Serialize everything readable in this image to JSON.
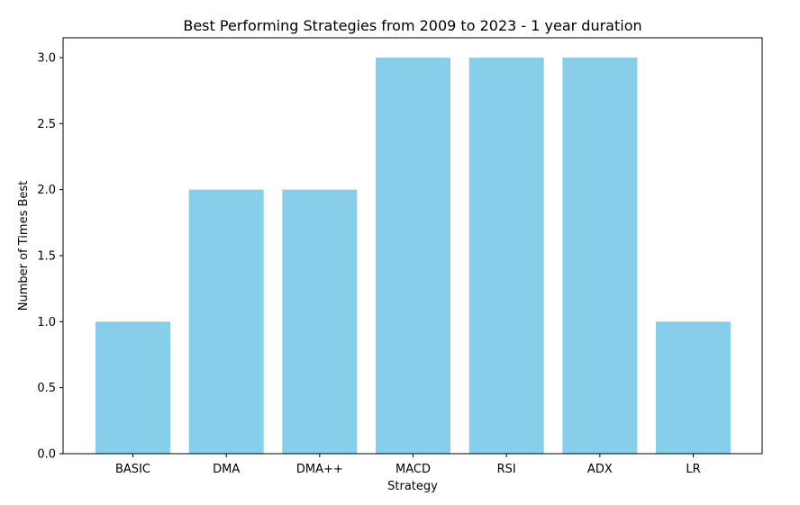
{
  "chart_data": {
    "type": "bar",
    "title": "Best Performing Strategies from 2009 to 2023 - 1 year duration",
    "xlabel": "Strategy",
    "ylabel": "Number of Times Best",
    "categories": [
      "BASIC",
      "DMA",
      "DMA++",
      "MACD",
      "RSI",
      "ADX",
      "LR"
    ],
    "values": [
      1,
      2,
      2,
      3,
      3,
      3,
      1
    ],
    "ylim": [
      0,
      3.15
    ],
    "yticks": [
      "0.0",
      "0.5",
      "1.0",
      "1.5",
      "2.0",
      "2.5",
      "3.0"
    ],
    "bar_color": "#87ceeb",
    "grid": false,
    "legend": "none"
  }
}
